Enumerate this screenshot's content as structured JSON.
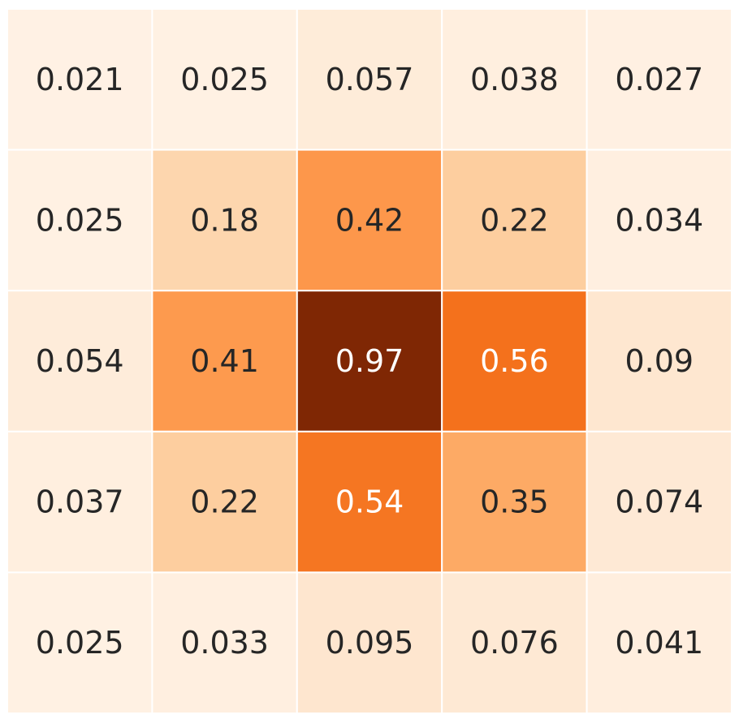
{
  "chart_data": {
    "type": "heatmap",
    "title": "",
    "xlabel": "",
    "ylabel": "",
    "x_tick_labels": [],
    "y_tick_labels": [],
    "colorbar": false,
    "colormap": "Oranges",
    "value_range": [
      0,
      0.97
    ],
    "values": [
      [
        0.021,
        0.025,
        0.057,
        0.038,
        0.027
      ],
      [
        0.025,
        0.18,
        0.42,
        0.22,
        0.034
      ],
      [
        0.054,
        0.41,
        0.97,
        0.56,
        0.09
      ],
      [
        0.037,
        0.22,
        0.54,
        0.35,
        0.074
      ],
      [
        0.025,
        0.033,
        0.095,
        0.076,
        0.041
      ]
    ],
    "annotations": [
      [
        "0.021",
        "0.025",
        "0.057",
        "0.038",
        "0.027"
      ],
      [
        "0.025",
        "0.18",
        "0.42",
        "0.22",
        "0.034"
      ],
      [
        "0.054",
        "0.41",
        "0.97",
        "0.56",
        "0.09"
      ],
      [
        "0.037",
        "0.22",
        "0.54",
        "0.35",
        "0.074"
      ],
      [
        "0.025",
        "0.033",
        "0.095",
        "0.076",
        "0.041"
      ]
    ],
    "annotation_colors": {
      "dark": "#262626",
      "light": "#ffffff"
    },
    "cell_border_color": "#ffffff"
  }
}
